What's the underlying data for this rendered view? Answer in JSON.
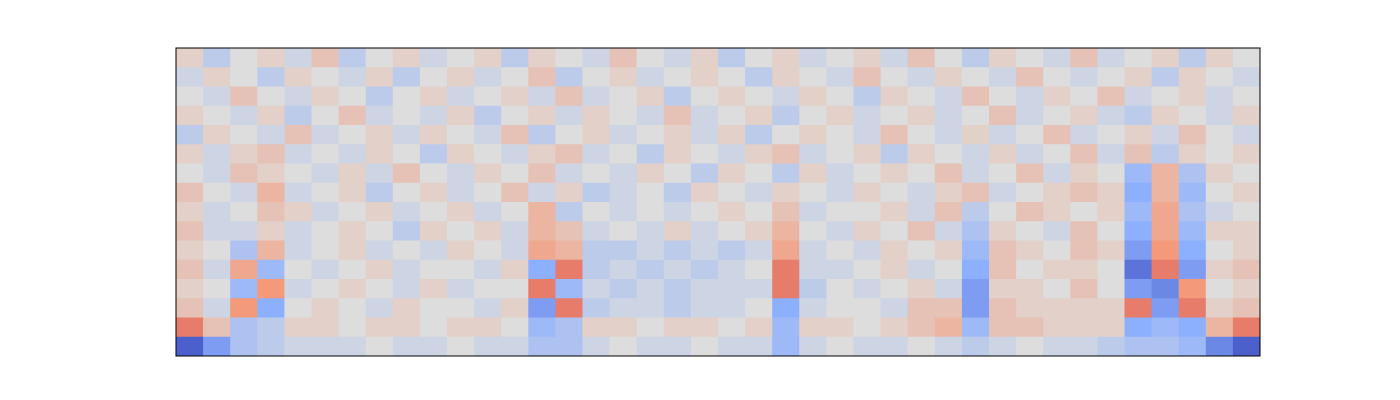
{
  "chart_data": {
    "type": "heatmap",
    "colormap": [
      "#3b4cc0",
      "#8db0fe",
      "#dddddd",
      "#f49a7b",
      "#b40426"
    ],
    "zlim": [
      -1,
      1
    ],
    "values": [
      [
        0.1,
        -0.2,
        0,
        0.1,
        -0.1,
        0.2,
        -0.2,
        0,
        0.1,
        -0.1,
        0,
        0.1,
        -0.2,
        0.1,
        0,
        -0.1,
        0.2,
        0,
        -0.1,
        0.1,
        -0.2,
        0,
        0.1,
        -0.1,
        0,
        0.1,
        -0.1,
        0.2,
        0,
        -0.2,
        0.1,
        0,
        -0.1,
        0.2,
        -0.1,
        0,
        0.1,
        -0.2,
        0.1,
        0
      ],
      [
        -0.1,
        0.1,
        0,
        -0.2,
        0.1,
        0,
        -0.1,
        0.1,
        -0.2,
        0,
        0.1,
        -0.1,
        0,
        0.2,
        -0.2,
        0,
        0.1,
        -0.1,
        0,
        0.1,
        0,
        -0.2,
        0.1,
        0,
        -0.1,
        0.2,
        0,
        -0.1,
        0.1,
        0,
        -0.1,
        0.2,
        0,
        -0.1,
        0,
        0.1,
        -0.2,
        0.1,
        0,
        -0.1
      ],
      [
        0,
        -0.1,
        0.2,
        0,
        -0.1,
        0.1,
        0,
        -0.2,
        0,
        0.1,
        -0.1,
        0,
        0.1,
        -0.1,
        0.2,
        -0.1,
        0,
        0.1,
        -0.2,
        0,
        0.1,
        0,
        -0.1,
        0.1,
        0,
        -0.2,
        0.1,
        0,
        -0.1,
        0.2,
        0,
        -0.1,
        0.1,
        0,
        0.2,
        -0.1,
        0,
        0.1,
        -0.1,
        0
      ],
      [
        0.1,
        0,
        -0.1,
        0.1,
        -0.2,
        0,
        0.2,
        -0.1,
        0,
        -0.1,
        0.1,
        -0.2,
        0,
        0.1,
        -0.1,
        0.1,
        0,
        -0.1,
        0.2,
        -0.1,
        0,
        0.1,
        -0.2,
        0,
        0.1,
        -0.1,
        0,
        0.1,
        -0.1,
        0,
        0.2,
        -0.1,
        0,
        0.1,
        -0.1,
        -0.2,
        0.1,
        0,
        -0.1,
        0.1
      ],
      [
        -0.2,
        0.1,
        0,
        -0.1,
        0.2,
        -0.1,
        0,
        0.1,
        -0.1,
        0.1,
        0,
        -0.1,
        0.2,
        -0.2,
        0,
        0.1,
        -0.1,
        0,
        0.1,
        -0.1,
        0.1,
        -0.2,
        0,
        0.1,
        0,
        -0.1,
        0.2,
        0,
        -0.1,
        0.1,
        -0.1,
        0,
        0.2,
        -0.1,
        0,
        0.1,
        -0.1,
        0.2,
        0,
        -0.1
      ],
      [
        0.1,
        -0.1,
        0.1,
        0.2,
        -0.1,
        0,
        -0.1,
        0.1,
        0,
        -0.2,
        0.1,
        0,
        -0.1,
        0.1,
        0.2,
        -0.1,
        0,
        -0.2,
        0.1,
        0,
        -0.1,
        0.1,
        0.2,
        -0.1,
        0,
        0.1,
        -0.2,
        0.1,
        0,
        -0.1,
        0.1,
        -0.1,
        0,
        0.2,
        -0.1,
        0.2,
        -0.2,
        0.1,
        0,
        0.1
      ],
      [
        0,
        -0.1,
        0.2,
        0.1,
        0,
        -0.1,
        0.1,
        -0.1,
        0.2,
        0,
        -0.1,
        0.1,
        0,
        0.2,
        -0.1,
        0,
        -0.1,
        0.1,
        0,
        -0.2,
        0.1,
        0,
        -0.2,
        0.1,
        -0.1,
        0,
        0.1,
        0,
        0.2,
        -0.1,
        0,
        0.2,
        -0.1,
        0.1,
        0,
        -0.4,
        0.3,
        -0.3,
        0.1,
        0
      ],
      [
        0.2,
        0,
        -0.1,
        0.3,
        -0.1,
        0,
        0.1,
        -0.2,
        0,
        0.1,
        -0.1,
        0,
        0.2,
        -0.1,
        0.1,
        -0.2,
        -0.1,
        0,
        -0.2,
        0.1,
        0,
        -0.1,
        0.1,
        0,
        -0.1,
        0.1,
        0,
        -0.1,
        0.1,
        0.2,
        -0.1,
        0,
        0.1,
        0.2,
        0.1,
        -0.5,
        0.3,
        -0.4,
        0,
        0.1
      ],
      [
        0.1,
        -0.1,
        0,
        0.2,
        0.1,
        -0.1,
        0,
        0.1,
        -0.1,
        0,
        0.1,
        -0.1,
        0,
        0.3,
        -0.2,
        0,
        -0.1,
        0,
        -0.1,
        0,
        0.1,
        0,
        0.2,
        -0.1,
        0,
        0,
        0.1,
        -0.1,
        0.2,
        -0.2,
        0,
        0.2,
        0.1,
        0,
        0.1,
        -0.4,
        0.4,
        -0.3,
        -0.1,
        0
      ],
      [
        0.2,
        -0.1,
        -0.1,
        0.1,
        -0.1,
        0,
        0.1,
        0,
        -0.2,
        0.1,
        0,
        0.1,
        -0.1,
        0.3,
        0.2,
        -0.1,
        0,
        -0.1,
        0.1,
        -0.1,
        0,
        0.1,
        0.3,
        0,
        -0.1,
        0.1,
        0,
        0.2,
        -0.1,
        -0.3,
        0.1,
        0,
        -0.1,
        0.2,
        0,
        -0.5,
        0.4,
        -0.4,
        0.1,
        0.1
      ],
      [
        0.1,
        0,
        -0.3,
        0.3,
        -0.1,
        0,
        0.1,
        -0.1,
        0,
        -0.1,
        0.1,
        0,
        -0.1,
        0.4,
        0.3,
        -0.2,
        -0.2,
        -0.1,
        -0.2,
        -0.1,
        -0.2,
        -0.1,
        0.4,
        -0.1,
        0,
        -0.1,
        0.1,
        0,
        0.1,
        -0.4,
        0.2,
        0.1,
        0,
        0.2,
        0.1,
        -0.6,
        0.5,
        -0.5,
        0,
        0.1
      ],
      [
        0.2,
        -0.1,
        0.4,
        -0.4,
        0,
        -0.1,
        0,
        0.1,
        -0.1,
        0,
        0,
        -0.1,
        0.1,
        -0.5,
        0.6,
        -0.2,
        -0.1,
        -0.2,
        -0.1,
        -0.2,
        -0.1,
        0,
        0.6,
        -0.1,
        -0.1,
        0,
        0.1,
        -0.1,
        0,
        -0.5,
        0.2,
        0,
        0.1,
        0.1,
        0,
        -0.8,
        0.6,
        -0.6,
        0.1,
        0.2
      ],
      [
        0.1,
        0,
        -0.4,
        0.5,
        -0.1,
        0,
        0.1,
        0,
        -0.1,
        0.1,
        -0.1,
        0,
        0,
        0.6,
        -0.4,
        -0.1,
        -0.2,
        -0.1,
        -0.2,
        -0.1,
        -0.1,
        -0.1,
        0.6,
        -0.2,
        0,
        -0.1,
        0,
        0.1,
        -0.1,
        -0.6,
        0.1,
        0.1,
        0,
        0.2,
        0,
        -0.6,
        -0.7,
        0.5,
        0,
        0.1
      ],
      [
        0.2,
        -0.1,
        0.5,
        -0.5,
        0,
        0.1,
        0,
        -0.1,
        0.1,
        0,
        0,
        -0.1,
        0.1,
        -0.6,
        0.6,
        -0.2,
        -0.1,
        -0.1,
        -0.2,
        -0.1,
        -0.1,
        0,
        -0.5,
        -0.1,
        0,
        0,
        -0.1,
        0.2,
        0.2,
        -0.6,
        0.2,
        0.1,
        0.1,
        0.1,
        0.1,
        0.6,
        -0.6,
        0.6,
        0.1,
        0.2
      ],
      [
        0.6,
        0.2,
        -0.3,
        -0.2,
        0.1,
        0.1,
        0,
        0.1,
        0.1,
        0,
        0.1,
        0.1,
        0,
        -0.4,
        -0.3,
        0.1,
        0.1,
        0,
        0.1,
        0.1,
        0,
        0.1,
        -0.4,
        0.1,
        0.1,
        0,
        0.1,
        0.2,
        0.3,
        -0.4,
        0.2,
        0.2,
        0.1,
        0.1,
        0.1,
        -0.5,
        -0.4,
        -0.5,
        0.3,
        0.6
      ],
      [
        -0.9,
        -0.6,
        -0.3,
        -0.2,
        -0.1,
        -0.1,
        -0.1,
        0,
        -0.1,
        -0.1,
        0,
        -0.1,
        -0.1,
        -0.3,
        -0.3,
        -0.1,
        0,
        -0.1,
        -0.1,
        0,
        -0.1,
        -0.1,
        -0.4,
        -0.1,
        0,
        -0.1,
        -0.1,
        0,
        -0.1,
        -0.2,
        -0.1,
        0,
        -0.1,
        -0.1,
        -0.2,
        -0.3,
        -0.3,
        -0.4,
        -0.7,
        -0.9
      ]
    ]
  }
}
